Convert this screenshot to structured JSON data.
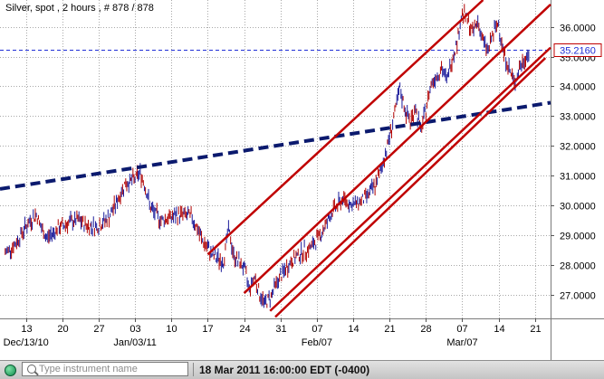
{
  "instrument": {
    "name": "Silver, spot",
    "interval": "2 hours",
    "bar_count": "# 878 / 878"
  },
  "status_bar": {
    "search_placeholder": "Type instrument name",
    "timestamp": "18 Mar 2011 16:00:00  EDT (-0400)"
  },
  "colors": {
    "price_bar_up": "#1a1a9a",
    "price_bar_down": "#b00000",
    "channel_lines": "#c00000",
    "trend_line": "#0b1a6e",
    "last_price_line": "#1f2fd6",
    "grid": "#a8a8a8",
    "status_ok": "#1aa05a"
  },
  "chart_data": {
    "type": "line",
    "title": "Silver, spot , 2 hours , # 878 / 878",
    "y_axis": {
      "ticks": [
        27.0,
        28.0,
        29.0,
        30.0,
        31.0,
        32.0,
        33.0,
        34.0,
        35.0,
        36.0
      ],
      "tick_labels": [
        "27.0000",
        "28.0000",
        "29.0000",
        "30.0000",
        "31.0000",
        "32.0000",
        "33.0000",
        "34.0000",
        "35.0000",
        "36.0000"
      ],
      "ylim": [
        26.2,
        36.9
      ],
      "position": "right"
    },
    "x_axis": {
      "xlim": [
        "2010-12-08",
        "2011-03-24"
      ],
      "ticks": [
        {
          "date": "2010-12-13",
          "label": "13"
        },
        {
          "date": "2010-12-20",
          "label": "20"
        },
        {
          "date": "2010-12-27",
          "label": "27"
        },
        {
          "date": "2011-01-03",
          "label": "03"
        },
        {
          "date": "2011-01-10",
          "label": "10"
        },
        {
          "date": "2011-01-17",
          "label": "17"
        },
        {
          "date": "2011-01-24",
          "label": "24"
        },
        {
          "date": "2011-01-31",
          "label": "31"
        },
        {
          "date": "2011-02-07",
          "label": "07"
        },
        {
          "date": "2011-02-14",
          "label": "14"
        },
        {
          "date": "2011-02-21",
          "label": "21"
        },
        {
          "date": "2011-02-28",
          "label": "28"
        },
        {
          "date": "2011-03-07",
          "label": "07"
        },
        {
          "date": "2011-03-14",
          "label": "14"
        },
        {
          "date": "2011-03-21",
          "label": "21"
        }
      ],
      "period_labels": [
        {
          "date": "2010-12-13",
          "label": "Dec/13/10"
        },
        {
          "date": "2011-01-03",
          "label": "Jan/03/11"
        },
        {
          "date": "2011-02-07",
          "label": "Feb/07"
        },
        {
          "date": "2011-03-07",
          "label": "Mar/07"
        }
      ]
    },
    "grid": true,
    "last_price": {
      "value": 35.216,
      "label": "35.2160"
    },
    "series": [
      {
        "values": [
          {
            "x": "2010-12-09",
            "y": 28.4
          },
          {
            "x": "2010-12-11",
            "y": 28.7
          },
          {
            "x": "2010-12-13",
            "y": 29.3
          },
          {
            "x": "2010-12-15",
            "y": 29.7
          },
          {
            "x": "2010-12-16",
            "y": 29.2
          },
          {
            "x": "2010-12-17",
            "y": 28.9
          },
          {
            "x": "2010-12-19",
            "y": 29.2
          },
          {
            "x": "2010-12-21",
            "y": 29.4
          },
          {
            "x": "2010-12-23",
            "y": 29.5
          },
          {
            "x": "2010-12-25",
            "y": 29.3
          },
          {
            "x": "2010-12-27",
            "y": 29.3
          },
          {
            "x": "2010-12-29",
            "y": 29.6
          },
          {
            "x": "2010-12-31",
            "y": 30.3
          },
          {
            "x": "2011-01-01",
            "y": 30.7
          },
          {
            "x": "2011-01-03",
            "y": 30.9
          },
          {
            "x": "2011-01-04",
            "y": 31.1
          },
          {
            "x": "2011-01-05",
            "y": 30.6
          },
          {
            "x": "2011-01-06",
            "y": 29.9
          },
          {
            "x": "2011-01-08",
            "y": 29.5
          },
          {
            "x": "2011-01-10",
            "y": 29.6
          },
          {
            "x": "2011-01-12",
            "y": 29.7
          },
          {
            "x": "2011-01-14",
            "y": 29.6
          },
          {
            "x": "2011-01-16",
            "y": 28.8
          },
          {
            "x": "2011-01-18",
            "y": 28.3
          },
          {
            "x": "2011-01-20",
            "y": 28.1
          },
          {
            "x": "2011-01-21",
            "y": 29.2
          },
          {
            "x": "2011-01-22",
            "y": 28.3
          },
          {
            "x": "2011-01-24",
            "y": 27.9
          },
          {
            "x": "2011-01-25",
            "y": 27.2
          },
          {
            "x": "2011-01-26",
            "y": 27.6
          },
          {
            "x": "2011-01-27",
            "y": 27.0
          },
          {
            "x": "2011-01-28",
            "y": 26.7
          },
          {
            "x": "2011-01-29",
            "y": 26.9
          },
          {
            "x": "2011-01-30",
            "y": 27.3
          },
          {
            "x": "2011-01-31",
            "y": 27.6
          },
          {
            "x": "2011-02-02",
            "y": 28.1
          },
          {
            "x": "2011-02-04",
            "y": 28.4
          },
          {
            "x": "2011-02-06",
            "y": 28.6
          },
          {
            "x": "2011-02-08",
            "y": 29.1
          },
          {
            "x": "2011-02-10",
            "y": 29.8
          },
          {
            "x": "2011-02-12",
            "y": 30.2
          },
          {
            "x": "2011-02-14",
            "y": 30.0
          },
          {
            "x": "2011-02-16",
            "y": 30.2
          },
          {
            "x": "2011-02-18",
            "y": 30.6
          },
          {
            "x": "2011-02-19",
            "y": 31.0
          },
          {
            "x": "2011-02-20",
            "y": 31.6
          },
          {
            "x": "2011-02-21",
            "y": 32.3
          },
          {
            "x": "2011-02-23",
            "y": 33.9
          },
          {
            "x": "2011-02-24",
            "y": 33.2
          },
          {
            "x": "2011-02-25",
            "y": 32.8
          },
          {
            "x": "2011-02-26",
            "y": 33.3
          },
          {
            "x": "2011-02-27",
            "y": 32.5
          },
          {
            "x": "2011-02-28",
            "y": 33.2
          },
          {
            "x": "2011-03-01",
            "y": 34.1
          },
          {
            "x": "2011-03-03",
            "y": 34.6
          },
          {
            "x": "2011-03-04",
            "y": 34.2
          },
          {
            "x": "2011-03-05",
            "y": 34.9
          },
          {
            "x": "2011-03-06",
            "y": 35.5
          },
          {
            "x": "2011-03-07",
            "y": 36.5
          },
          {
            "x": "2011-03-08",
            "y": 36.2
          },
          {
            "x": "2011-03-09",
            "y": 35.8
          },
          {
            "x": "2011-03-10",
            "y": 36.2
          },
          {
            "x": "2011-03-11",
            "y": 35.5
          },
          {
            "x": "2011-03-12",
            "y": 35.2
          },
          {
            "x": "2011-03-13",
            "y": 35.8
          },
          {
            "x": "2011-03-14",
            "y": 36.1
          },
          {
            "x": "2011-03-15",
            "y": 35.1
          },
          {
            "x": "2011-03-16",
            "y": 34.6
          },
          {
            "x": "2011-03-17",
            "y": 34.1
          },
          {
            "x": "2011-03-18",
            "y": 34.6
          },
          {
            "x": "2011-03-19",
            "y": 34.9
          },
          {
            "x": "2011-03-20",
            "y": 35.2
          }
        ]
      }
    ],
    "annotations": [
      {
        "kind": "trend_line",
        "style": "dashed",
        "color": "#0b1a6e",
        "from": {
          "x": "2010-12-08",
          "y": 30.55
        },
        "to": {
          "x": "2011-03-24",
          "y": 33.45
        }
      },
      {
        "kind": "channel_line",
        "color": "#c00000",
        "from": {
          "x": "2011-01-17",
          "y": 28.35
        },
        "to": {
          "x": "2011-03-11",
          "y": 36.9
        }
      },
      {
        "kind": "channel_line",
        "color": "#c00000",
        "from": {
          "x": "2011-01-24",
          "y": 27.05
        },
        "to": {
          "x": "2011-03-24",
          "y": 36.75
        }
      },
      {
        "kind": "channel_line",
        "color": "#c00000",
        "from": {
          "x": "2011-01-29",
          "y": 26.45
        },
        "to": {
          "x": "2011-03-24",
          "y": 35.3
        }
      },
      {
        "kind": "channel_line",
        "color": "#c00000",
        "from": {
          "x": "2011-01-30",
          "y": 26.25
        },
        "to": {
          "x": "2011-03-23",
          "y": 34.95
        }
      }
    ]
  }
}
